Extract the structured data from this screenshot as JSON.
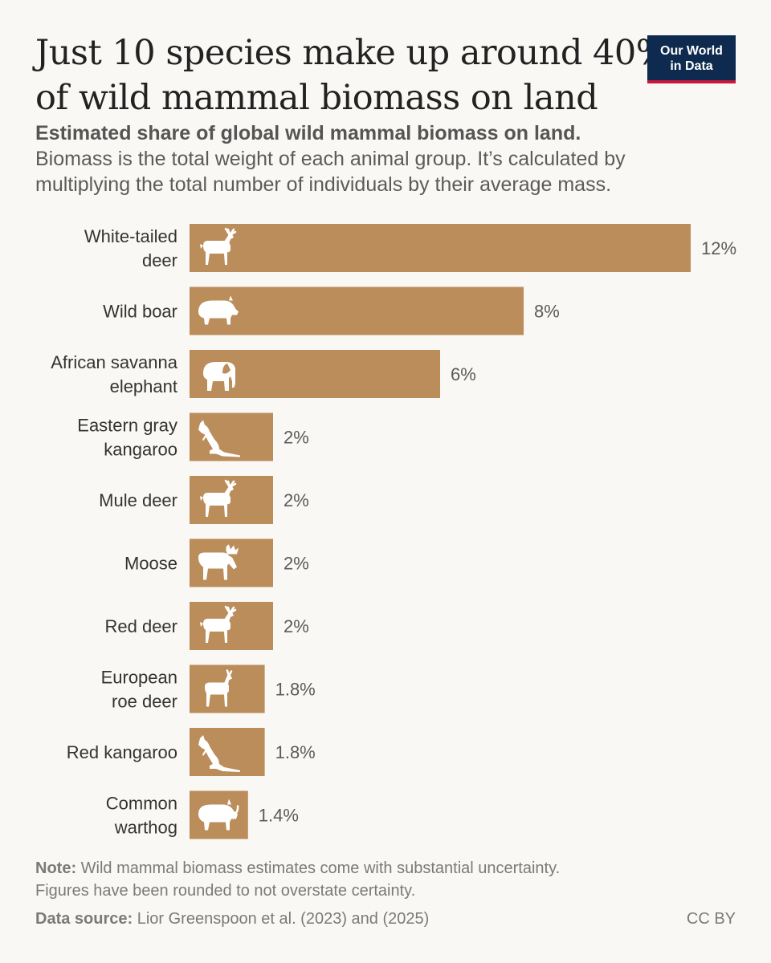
{
  "header": {
    "title_line1": "Just 10 species make up around 40%",
    "title_line2": "of wild mammal biomass on land",
    "logo_line1": "Our World",
    "logo_line2": "in Data",
    "subtitle_bold": "Estimated share of global wild mammal biomass on land.",
    "subtitle_line1": "Biomass is the total weight of each animal group. It’s calculated by",
    "subtitle_line2": "multiplying the total number of individuals by their average mass."
  },
  "colors": {
    "bar": "#bb8d5a",
    "icon": "#ffffff",
    "logo_bg": "#0f2a4f",
    "logo_accent": "#c8193d"
  },
  "chart_data": {
    "type": "bar",
    "orientation": "horizontal",
    "title": "Just 10 species make up around 40% of wild mammal biomass on land",
    "xlabel": "",
    "ylabel": "",
    "xlim": [
      0,
      12
    ],
    "grid": false,
    "unit": "%",
    "categories": [
      [
        "White-tailed",
        "deer"
      ],
      [
        "Wild boar"
      ],
      [
        "African savanna",
        "elephant"
      ],
      [
        "Eastern gray",
        "kangaroo"
      ],
      [
        "Mule deer"
      ],
      [
        "Moose"
      ],
      [
        "Red deer"
      ],
      [
        "European",
        "roe deer"
      ],
      [
        "Red kangaroo"
      ],
      [
        "Common",
        "warthog"
      ]
    ],
    "values": [
      12,
      8,
      6,
      2,
      2,
      2,
      2,
      1.8,
      1.8,
      1.4
    ],
    "value_labels": [
      "12%",
      "8%",
      "6%",
      "2%",
      "2%",
      "2%",
      "2%",
      "1.8%",
      "1.8%",
      "1.4%"
    ],
    "icons": [
      "deer-icon",
      "boar-icon",
      "elephant-icon",
      "kangaroo-icon",
      "deer-icon",
      "moose-icon",
      "deer-icon",
      "roe-deer-icon",
      "kangaroo-icon",
      "warthog-icon"
    ]
  },
  "footer": {
    "note_label": "Note:",
    "note_line1": "Wild mammal biomass estimates come with substantial uncertainty.",
    "note_line2": "Figures have been rounded to not overstate certainty.",
    "source_label": "Data source:",
    "source_text": "Lior Greenspoon et al. (2023) and (2025)",
    "license": "CC BY"
  }
}
